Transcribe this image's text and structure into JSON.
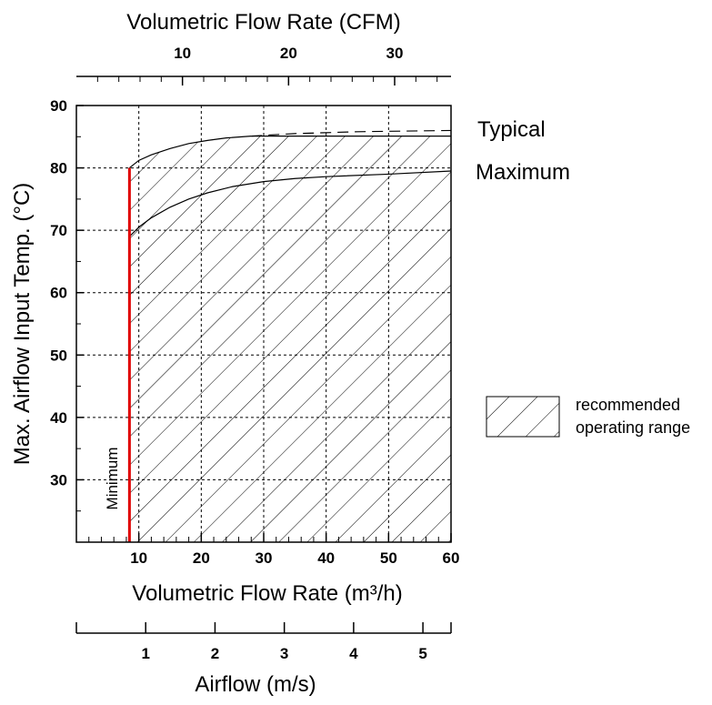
{
  "chart_data": {
    "type": "area",
    "top_axis": {
      "label": "Volumetric Flow Rate (CFM)",
      "ticks": [
        10,
        20,
        30
      ]
    },
    "bottom_axis": {
      "label": "Volumetric Flow Rate (m³/h)",
      "xlim": [
        0,
        60
      ],
      "ticks": [
        10,
        20,
        30,
        40,
        50,
        60
      ]
    },
    "airflow_axis": {
      "label": "Airflow (m/s)",
      "ticks": [
        1,
        2,
        3,
        4,
        5
      ]
    },
    "y_axis": {
      "label": "Max. Airflow Input Temp. (°C)",
      "ylim": [
        20,
        90
      ],
      "ticks": [
        30,
        40,
        50,
        60,
        70,
        80,
        90
      ]
    },
    "grid": true,
    "minimum": {
      "label": "Minimum",
      "x": 8.5,
      "color": "#e00000"
    },
    "series": [
      {
        "name": "Typical",
        "x": [
          8.5,
          10,
          12,
          15,
          18,
          21,
          24,
          28,
          35,
          45,
          60
        ],
        "y": [
          80,
          81.2,
          82.1,
          83.1,
          83.9,
          84.4,
          84.8,
          85.1,
          85.5,
          85.8,
          86
        ]
      },
      {
        "name": "Maximum",
        "x": [
          8.5,
          10,
          12,
          15,
          18,
          21,
          25,
          30,
          35,
          40,
          50,
          60
        ],
        "y": [
          69,
          70.5,
          72,
          73.7,
          75,
          76,
          77,
          77.8,
          78.3,
          78.6,
          79,
          79.5
        ]
      }
    ],
    "legend": {
      "label": "recommended operating range",
      "placement": "right"
    }
  }
}
